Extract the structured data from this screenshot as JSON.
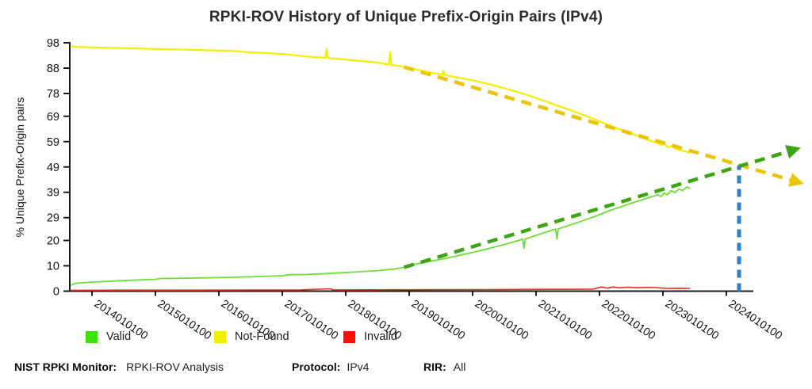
{
  "chart_data": {
    "type": "line",
    "title": "RPKI-ROV History of Unique Prefix-Origin Pairs (IPv4)",
    "xlabel": "",
    "ylabel": "% Unique Prefix-Origin pairs",
    "x_unit": "timestamp YYYYMMDDHH",
    "xlim": [
      2013.65,
      2024.43
    ],
    "ylim": [
      0,
      98
    ],
    "grid": false,
    "legend_position": "bottom",
    "y_ticks": [
      0,
      10,
      20,
      29,
      39,
      49,
      59,
      69,
      78,
      88,
      98
    ],
    "x_ticks": [
      {
        "year": 2014,
        "label": "2014010100"
      },
      {
        "year": 2015,
        "label": "2015010100"
      },
      {
        "year": 2016,
        "label": "2016010100"
      },
      {
        "year": 2017,
        "label": "2017010100"
      },
      {
        "year": 2018,
        "label": "2018010100"
      },
      {
        "year": 2019,
        "label": "2019010100"
      },
      {
        "year": 2020,
        "label": "2020010100"
      },
      {
        "year": 2021,
        "label": "2021010100"
      },
      {
        "year": 2022,
        "label": "2022010100"
      },
      {
        "year": 2023,
        "label": "2023010100"
      },
      {
        "year": 2024,
        "label": "2024010100"
      }
    ],
    "series": [
      {
        "name": "Not-Found",
        "color": "#F4EE00",
        "style": "solid",
        "width": 2.2,
        "arrow": false,
        "points": [
          [
            2013.66,
            96.7
          ],
          [
            2013.75,
            96.4
          ],
          [
            2014.0,
            96.2
          ],
          [
            2014.3,
            96.0
          ],
          [
            2014.6,
            95.8
          ],
          [
            2015.0,
            95.6
          ],
          [
            2015.3,
            95.4
          ],
          [
            2015.6,
            95.2
          ],
          [
            2015.9,
            95.0
          ],
          [
            2016.2,
            94.8
          ],
          [
            2016.45,
            94.3
          ],
          [
            2016.7,
            94.0
          ],
          [
            2017.0,
            93.6
          ],
          [
            2017.2,
            93.1
          ],
          [
            2017.45,
            92.4
          ],
          [
            2017.68,
            92.1
          ],
          [
            2017.7,
            95.5
          ],
          [
            2017.72,
            92.0
          ],
          [
            2018.0,
            91.4
          ],
          [
            2018.25,
            90.8
          ],
          [
            2018.5,
            90.2
          ],
          [
            2018.68,
            89.4
          ],
          [
            2018.7,
            94.4
          ],
          [
            2018.72,
            89.3
          ],
          [
            2018.92,
            88.6
          ],
          [
            2019.05,
            87.8
          ],
          [
            2019.2,
            87.0
          ],
          [
            2019.4,
            86.0
          ],
          [
            2019.52,
            85.4
          ],
          [
            2019.54,
            87.0
          ],
          [
            2019.56,
            85.3
          ],
          [
            2019.8,
            84.1
          ],
          [
            2020.0,
            83.2
          ],
          [
            2020.25,
            81.7
          ],
          [
            2020.5,
            80.1
          ],
          [
            2020.75,
            78.3
          ],
          [
            2021.0,
            76.2
          ],
          [
            2021.25,
            74.0
          ],
          [
            2021.5,
            71.8
          ],
          [
            2021.75,
            69.5
          ],
          [
            2022.0,
            67.0
          ],
          [
            2022.25,
            64.5
          ],
          [
            2022.5,
            62.2
          ],
          [
            2022.75,
            59.8
          ],
          [
            2022.92,
            58.4
          ],
          [
            2022.97,
            57.7
          ],
          [
            2023.02,
            58.1
          ],
          [
            2023.08,
            56.8
          ],
          [
            2023.14,
            57.3
          ],
          [
            2023.2,
            56.1
          ],
          [
            2023.28,
            55.6
          ],
          [
            2023.35,
            55.2
          ],
          [
            2023.43,
            54.4
          ]
        ]
      },
      {
        "name": "Valid",
        "color": "#6CDE32",
        "style": "solid",
        "width": 1.8,
        "arrow": false,
        "points": [
          [
            2013.66,
            2.2
          ],
          [
            2013.72,
            3.0
          ],
          [
            2013.85,
            3.3
          ],
          [
            2014.0,
            3.6
          ],
          [
            2014.2,
            3.8
          ],
          [
            2014.45,
            4.1
          ],
          [
            2014.7,
            4.4
          ],
          [
            2015.0,
            4.7
          ],
          [
            2015.08,
            5.0
          ],
          [
            2015.35,
            5.05
          ],
          [
            2015.6,
            5.15
          ],
          [
            2015.9,
            5.3
          ],
          [
            2016.2,
            5.45
          ],
          [
            2016.5,
            5.65
          ],
          [
            2016.8,
            5.9
          ],
          [
            2017.0,
            6.1
          ],
          [
            2017.12,
            6.5
          ],
          [
            2017.4,
            6.6
          ],
          [
            2017.7,
            6.95
          ],
          [
            2018.0,
            7.35
          ],
          [
            2018.25,
            7.7
          ],
          [
            2018.5,
            8.1
          ],
          [
            2018.75,
            8.7
          ],
          [
            2018.92,
            9.4
          ],
          [
            2019.05,
            10.4
          ],
          [
            2019.2,
            11.2
          ],
          [
            2019.4,
            12.1
          ],
          [
            2019.6,
            13.1
          ],
          [
            2019.8,
            14.2
          ],
          [
            2020.0,
            15.3
          ],
          [
            2020.2,
            16.5
          ],
          [
            2020.45,
            18.1
          ],
          [
            2020.65,
            19.5
          ],
          [
            2020.79,
            20.5
          ],
          [
            2020.81,
            16.9
          ],
          [
            2020.83,
            20.6
          ],
          [
            2021.0,
            22.0
          ],
          [
            2021.2,
            23.7
          ],
          [
            2021.31,
            24.5
          ],
          [
            2021.33,
            20.5
          ],
          [
            2021.35,
            24.6
          ],
          [
            2021.55,
            26.2
          ],
          [
            2021.75,
            27.9
          ],
          [
            2021.95,
            29.7
          ],
          [
            2022.15,
            31.7
          ],
          [
            2022.35,
            33.4
          ],
          [
            2022.55,
            35.1
          ],
          [
            2022.75,
            36.7
          ],
          [
            2022.92,
            38.0
          ],
          [
            2022.97,
            37.3
          ],
          [
            2023.02,
            38.8
          ],
          [
            2023.07,
            38.0
          ],
          [
            2023.13,
            39.7
          ],
          [
            2023.19,
            38.9
          ],
          [
            2023.25,
            40.3
          ],
          [
            2023.31,
            39.7
          ],
          [
            2023.38,
            41.1
          ],
          [
            2023.43,
            40.6
          ]
        ]
      },
      {
        "name": "Invalid",
        "color": "#E2301F",
        "style": "solid",
        "width": 1.6,
        "arrow": false,
        "points": [
          [
            2013.66,
            0.35
          ],
          [
            2014.5,
            0.4
          ],
          [
            2015.5,
            0.42
          ],
          [
            2016.5,
            0.46
          ],
          [
            2017.3,
            0.5
          ],
          [
            2017.76,
            0.95
          ],
          [
            2017.8,
            0.5
          ],
          [
            2018.4,
            0.52
          ],
          [
            2019.0,
            0.56
          ],
          [
            2019.6,
            0.6
          ],
          [
            2020.2,
            0.62
          ],
          [
            2020.8,
            0.68
          ],
          [
            2021.4,
            0.72
          ],
          [
            2021.9,
            0.8
          ],
          [
            2022.03,
            1.65
          ],
          [
            2022.12,
            1.2
          ],
          [
            2022.22,
            1.65
          ],
          [
            2022.32,
            1.3
          ],
          [
            2022.45,
            1.6
          ],
          [
            2022.6,
            1.35
          ],
          [
            2022.75,
            1.5
          ],
          [
            2022.9,
            1.4
          ],
          [
            2023.05,
            1.1
          ],
          [
            2023.25,
            1.15
          ],
          [
            2023.43,
            1.1
          ]
        ]
      },
      {
        "name": "Not-Found-trend",
        "color": "#EDC405",
        "style": "dashed",
        "width": 4.5,
        "arrow": true,
        "points": [
          [
            2018.92,
            88.4
          ],
          [
            2025.05,
            43.6
          ]
        ]
      },
      {
        "name": "Valid-trend",
        "color": "#3DA514",
        "style": "dashed",
        "width": 4.5,
        "arrow": true,
        "points": [
          [
            2018.92,
            9.4
          ],
          [
            2025.0,
            55.3
          ]
        ]
      },
      {
        "name": "Projected-crossover",
        "color": "#2E7FD0",
        "style": "dashed",
        "width": 5,
        "arrow": false,
        "points": [
          [
            2024.2,
            0
          ],
          [
            2024.2,
            49.3
          ]
        ]
      }
    ]
  },
  "legend": {
    "items": [
      {
        "label": "Valid",
        "color": "#3BE20B"
      },
      {
        "label": "Not-Found",
        "color": "#F2EE00"
      },
      {
        "label": "Invalid",
        "color": "#FA0F00"
      }
    ]
  },
  "footer": {
    "items": [
      {
        "label": "NIST RPKI Monitor:",
        "value": "RPKI-ROV Analysis"
      },
      {
        "label": "Protocol:",
        "value": "IPv4"
      },
      {
        "label": "RIR:",
        "value": "All"
      }
    ]
  }
}
